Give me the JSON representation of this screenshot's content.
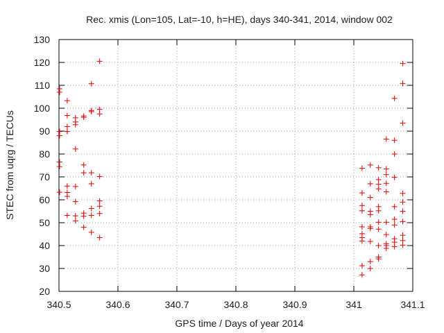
{
  "chart_data": {
    "type": "scatter",
    "title": "Rec. xmis (Lon=105, Lat=-10, h=HE), days 340-341, 2014, window 002",
    "xlabel": "GPS time / Days of year 2014",
    "ylabel": "STEC from uqrg / TECUs",
    "xlim": [
      340.5,
      341.1
    ],
    "ylim": [
      20,
      130
    ],
    "xticks": [
      340.5,
      340.6,
      340.7,
      340.8,
      340.9,
      341,
      341.1
    ],
    "xtick_labels": [
      "340.5",
      "340.6",
      "340.7",
      "340.8",
      "340.9",
      "341",
      "341.1"
    ],
    "yticks": [
      20,
      30,
      40,
      50,
      60,
      70,
      80,
      90,
      100,
      110,
      120,
      130
    ],
    "ytick_labels": [
      "20",
      "30",
      "40",
      "50",
      "60",
      "70",
      "80",
      "90",
      "100",
      "110",
      "120",
      "130"
    ],
    "grid": true,
    "marker": "+",
    "marker_color": "#e00000",
    "series": [
      {
        "name": "STEC",
        "points": [
          [
            340.501,
            108.5
          ],
          [
            340.501,
            107.0
          ],
          [
            340.501,
            89.8
          ],
          [
            340.501,
            88.0
          ],
          [
            340.501,
            76.5
          ],
          [
            340.501,
            74.5
          ],
          [
            340.501,
            63.3
          ],
          [
            340.514,
            103.3
          ],
          [
            340.514,
            96.8
          ],
          [
            340.514,
            92.0
          ],
          [
            340.514,
            89.8
          ],
          [
            340.514,
            66.0
          ],
          [
            340.514,
            63.2
          ],
          [
            340.514,
            61.5
          ],
          [
            340.514,
            53.2
          ],
          [
            340.528,
            95.8
          ],
          [
            340.528,
            94.0
          ],
          [
            340.528,
            92.8
          ],
          [
            340.528,
            82.2
          ],
          [
            340.528,
            65.8
          ],
          [
            340.528,
            59.2
          ],
          [
            340.528,
            53.0
          ],
          [
            340.528,
            50.8
          ],
          [
            340.542,
            96.6
          ],
          [
            340.542,
            96.0
          ],
          [
            340.542,
            75.2
          ],
          [
            340.542,
            71.8
          ],
          [
            340.542,
            54.2
          ],
          [
            340.542,
            52.8
          ],
          [
            340.542,
            48.0
          ],
          [
            340.555,
            110.7
          ],
          [
            340.555,
            99.0
          ],
          [
            340.555,
            98.5
          ],
          [
            340.555,
            71.8
          ],
          [
            340.555,
            67.0
          ],
          [
            340.555,
            56.2
          ],
          [
            340.555,
            53.2
          ],
          [
            340.555,
            45.8
          ],
          [
            340.569,
            120.5
          ],
          [
            340.569,
            99.5
          ],
          [
            340.569,
            97.5
          ],
          [
            340.569,
            70.2
          ],
          [
            340.569,
            59.5
          ],
          [
            340.569,
            57.2
          ],
          [
            340.569,
            54.0
          ],
          [
            340.569,
            43.5
          ],
          [
            341.014,
            73.8
          ],
          [
            341.014,
            63.0
          ],
          [
            341.014,
            57.5
          ],
          [
            341.014,
            55.2
          ],
          [
            341.014,
            48.2
          ],
          [
            341.014,
            45.2
          ],
          [
            341.014,
            43.5
          ],
          [
            341.014,
            42.0
          ],
          [
            341.014,
            31.2
          ],
          [
            341.014,
            27.2
          ],
          [
            341.028,
            75.2
          ],
          [
            341.028,
            67.0
          ],
          [
            341.028,
            61.0
          ],
          [
            341.028,
            55.0
          ],
          [
            341.028,
            53.5
          ],
          [
            341.028,
            48.2
          ],
          [
            341.028,
            47.5
          ],
          [
            341.028,
            41.8
          ],
          [
            341.028,
            33.0
          ],
          [
            341.028,
            30.0
          ],
          [
            341.042,
            74.0
          ],
          [
            341.042,
            68.8
          ],
          [
            341.042,
            66.8
          ],
          [
            341.042,
            64.8
          ],
          [
            341.042,
            57.0
          ],
          [
            341.042,
            55.2
          ],
          [
            341.042,
            50.2
          ],
          [
            341.042,
            47.2
          ],
          [
            341.042,
            40.0
          ],
          [
            341.042,
            35.0
          ],
          [
            341.042,
            34.2
          ],
          [
            341.055,
            86.5
          ],
          [
            341.055,
            73.5
          ],
          [
            341.055,
            71.0
          ],
          [
            341.055,
            67.2
          ],
          [
            341.055,
            63.5
          ],
          [
            341.055,
            50.2
          ],
          [
            341.055,
            44.8
          ],
          [
            341.055,
            40.8
          ],
          [
            341.055,
            40.0
          ],
          [
            341.055,
            38.8
          ],
          [
            341.069,
            104.3
          ],
          [
            341.069,
            86.0
          ],
          [
            341.069,
            80.0
          ],
          [
            341.069,
            69.8
          ],
          [
            341.069,
            57.0
          ],
          [
            341.069,
            51.5
          ],
          [
            341.069,
            49.0
          ],
          [
            341.069,
            43.0
          ],
          [
            341.069,
            41.5
          ],
          [
            341.069,
            39.5
          ],
          [
            341.083,
            119.5
          ],
          [
            341.083,
            110.8
          ],
          [
            341.083,
            93.5
          ],
          [
            341.083,
            62.8
          ],
          [
            341.083,
            59.0
          ],
          [
            341.083,
            55.0
          ],
          [
            341.083,
            50.5
          ],
          [
            341.083,
            44.5
          ],
          [
            341.083,
            42.2
          ],
          [
            341.083,
            40.2
          ]
        ]
      }
    ]
  }
}
